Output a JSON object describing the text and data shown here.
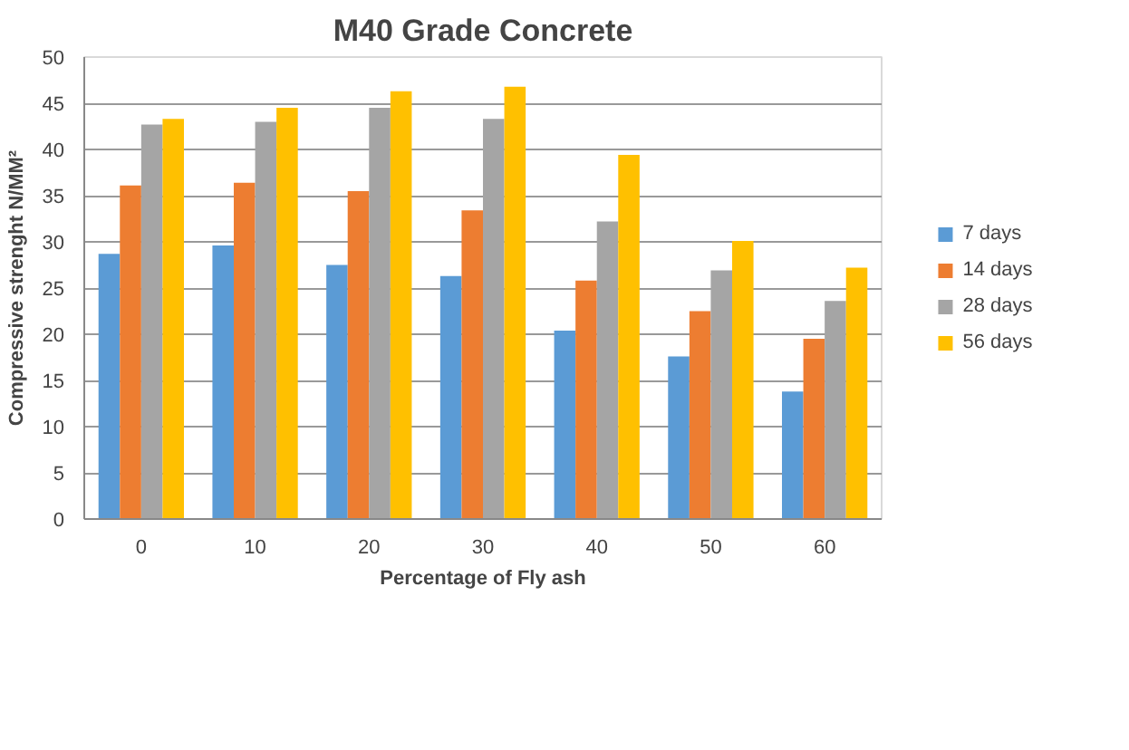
{
  "chart_data": {
    "type": "bar",
    "title": "M40 Grade Concrete",
    "xlabel": "Percentage of Fly ash",
    "ylabel": "Compressive strenght N/MM²",
    "categories": [
      "0",
      "10",
      "20",
      "30",
      "40",
      "50",
      "60"
    ],
    "series": [
      {
        "name": "7 days",
        "color": "#5b9bd5",
        "values": [
          28.7,
          29.6,
          27.5,
          26.3,
          20.4,
          17.6,
          13.8
        ]
      },
      {
        "name": "14 days",
        "color": "#ed7d31",
        "values": [
          36.1,
          36.4,
          35.5,
          33.4,
          25.8,
          22.5,
          19.5
        ]
      },
      {
        "name": "28 days",
        "color": "#a5a5a5",
        "values": [
          42.7,
          43.0,
          44.5,
          43.3,
          32.2,
          26.9,
          23.6
        ]
      },
      {
        "name": "56 days",
        "color": "#ffc000",
        "values": [
          43.3,
          44.5,
          46.3,
          46.8,
          39.4,
          30.1,
          27.2
        ]
      }
    ],
    "ylim": [
      0,
      50
    ],
    "yticks": [
      0,
      5,
      10,
      15,
      20,
      25,
      30,
      35,
      40,
      45,
      50
    ],
    "grid": "y",
    "legend": "right"
  }
}
